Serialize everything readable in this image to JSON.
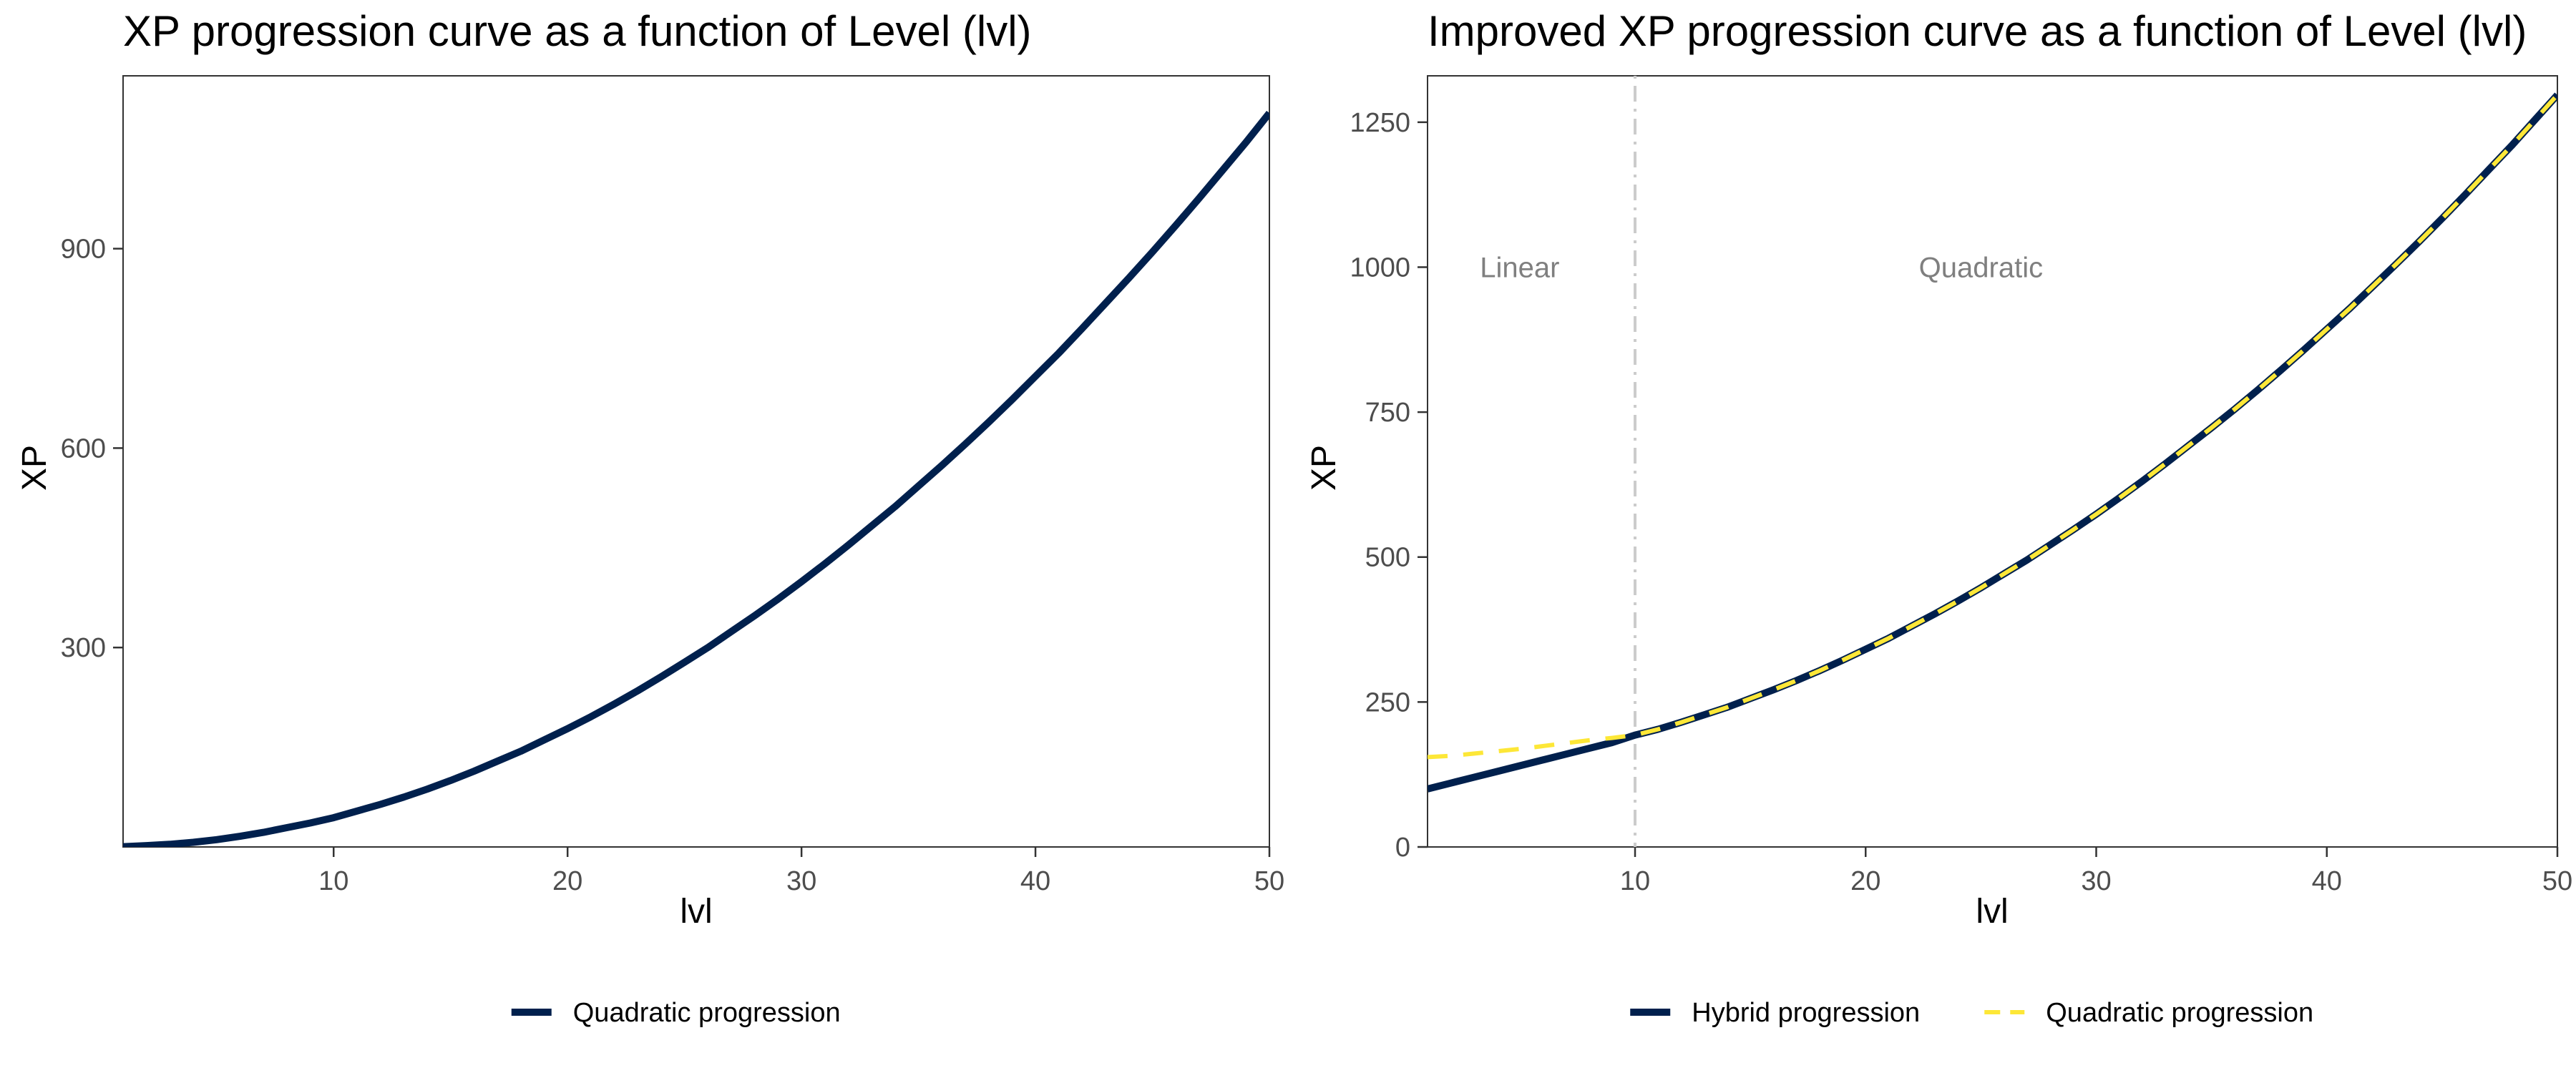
{
  "chart_data": [
    {
      "type": "line",
      "title": "XP progression curve as a function of Level (lvl)",
      "xlabel": "lvl",
      "ylabel": "XP",
      "xlim": [
        1,
        50
      ],
      "ylim": [
        0,
        1160
      ],
      "xticks": [
        10,
        20,
        30,
        40,
        50
      ],
      "yticks": [
        300,
        600,
        900
      ],
      "grid": false,
      "legend_position": "bottom",
      "series": [
        {
          "name": "Quadratic progression",
          "color": "#00204d",
          "style": "solid",
          "x": [
            1,
            2,
            3,
            4,
            5,
            6,
            7,
            8,
            9,
            10,
            11,
            12,
            13,
            14,
            15,
            16,
            17,
            18,
            19,
            20,
            21,
            22,
            23,
            24,
            25,
            26,
            27,
            28,
            29,
            30,
            31,
            32,
            33,
            34,
            35,
            36,
            37,
            38,
            39,
            40,
            41,
            42,
            43,
            44,
            45,
            46,
            47,
            48,
            49,
            50
          ],
          "y": [
            0.4,
            2,
            4,
            7,
            11,
            16,
            22,
            29,
            36,
            44,
            54,
            64,
            75,
            87,
            100,
            114,
            129,
            144,
            161,
            178,
            196,
            215,
            235,
            256,
            278,
            300,
            324,
            348,
            373,
            399,
            426,
            454,
            483,
            512,
            543,
            574,
            606,
            639,
            673,
            708,
            743,
            780,
            818,
            856,
            895,
            935,
            976,
            1018,
            1060,
            1104
          ]
        }
      ]
    },
    {
      "type": "line",
      "title": "Improved XP progression curve as a function of Level (lvl)",
      "xlabel": "lvl",
      "ylabel": "XP",
      "xlim": [
        1,
        50
      ],
      "ylim": [
        0,
        1330
      ],
      "xticks": [
        10,
        20,
        30,
        40,
        50
      ],
      "yticks": [
        0,
        250,
        500,
        750,
        1000,
        1250
      ],
      "grid": false,
      "legend_position": "bottom",
      "vline": {
        "x": 10,
        "color": "#cccccc",
        "style": "dotdash"
      },
      "annotations": [
        {
          "text": "Linear",
          "x": 5,
          "y": 1000
        },
        {
          "text": "Quadratic",
          "x": 25,
          "y": 1000
        }
      ],
      "series": [
        {
          "name": "Hybrid progression",
          "color": "#00204d",
          "style": "solid",
          "x": [
            1,
            2,
            3,
            4,
            5,
            6,
            7,
            8,
            9,
            10,
            11,
            12,
            13,
            14,
            15,
            16,
            17,
            18,
            19,
            20,
            21,
            22,
            23,
            24,
            25,
            26,
            27,
            28,
            29,
            30,
            31,
            32,
            33,
            34,
            35,
            36,
            37,
            38,
            39,
            40,
            41,
            42,
            43,
            44,
            45,
            46,
            47,
            48,
            49,
            50
          ],
          "y": [
            100,
            110,
            120,
            130,
            140,
            150,
            160,
            170,
            180,
            193,
            203,
            215,
            228,
            241,
            256,
            271,
            287,
            304,
            322,
            341,
            360,
            381,
            402,
            424,
            447,
            471,
            495,
            521,
            547,
            574,
            602,
            631,
            661,
            692,
            723,
            755,
            788,
            822,
            857,
            893,
            929,
            967,
            1005,
            1044,
            1084,
            1125,
            1167,
            1209,
            1253,
            1297
          ]
        },
        {
          "name": "Quadratic progression",
          "color": "#fde737",
          "style": "dashed",
          "x": [
            1,
            2,
            3,
            4,
            5,
            6,
            7,
            8,
            9,
            10,
            11,
            12,
            13,
            14,
            15,
            16,
            17,
            18,
            19,
            20,
            21,
            22,
            23,
            24,
            25,
            26,
            27,
            28,
            29,
            30,
            31,
            32,
            33,
            34,
            35,
            36,
            37,
            38,
            39,
            40,
            41,
            42,
            43,
            44,
            45,
            46,
            47,
            48,
            49,
            50
          ],
          "y": [
            155,
            157,
            161,
            165,
            169,
            174,
            179,
            184,
            188,
            193,
            203,
            215,
            228,
            241,
            256,
            271,
            287,
            304,
            322,
            341,
            360,
            381,
            402,
            424,
            447,
            471,
            495,
            521,
            547,
            574,
            602,
            631,
            661,
            692,
            723,
            755,
            788,
            822,
            857,
            893,
            929,
            967,
            1005,
            1044,
            1084,
            1125,
            1167,
            1209,
            1253,
            1297
          ]
        }
      ]
    }
  ]
}
